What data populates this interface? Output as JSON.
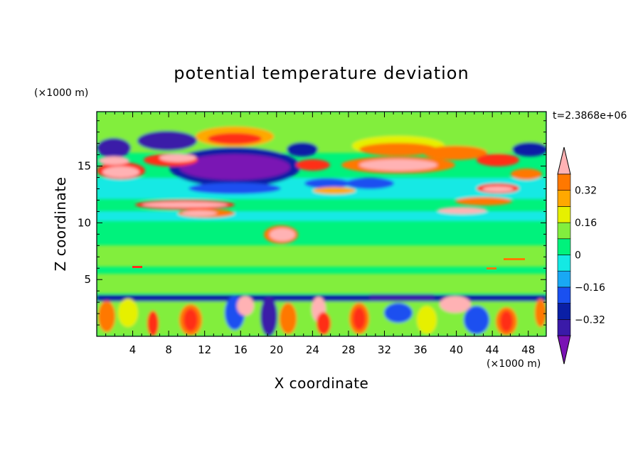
{
  "chart_data": {
    "type": "heatmap",
    "title": "potential temperature deviation",
    "xlabel": "X coordinate",
    "ylabel": "Z coordinate",
    "x_unit": "(×1000 m)",
    "y_unit": "(×1000 m)",
    "time_label": "t=2.3868e+06",
    "xlim": [
      0,
      50
    ],
    "ylim": [
      0,
      19.8
    ],
    "x_ticks": [
      4,
      8,
      12,
      16,
      20,
      24,
      28,
      32,
      36,
      40,
      44,
      48
    ],
    "x_tick_labels": [
      "4",
      "8",
      "12",
      "16",
      "20",
      "24",
      "28",
      "32",
      "36",
      "40",
      "44",
      "48"
    ],
    "y_ticks": [
      5,
      10,
      15
    ],
    "y_tick_labels": [
      "5",
      "10",
      "15"
    ],
    "colorbar": {
      "levels": [
        -0.4,
        -0.32,
        -0.24,
        -0.16,
        -0.08,
        0,
        0.08,
        0.16,
        0.24,
        0.32,
        0.4
      ],
      "colors": [
        "#7a12b4",
        "#3a1aa8",
        "#0a1fa6",
        "#1a50f0",
        "#19a8f4",
        "#14e9e4",
        "#00f27c",
        "#82ee3e",
        "#e6f000",
        "#ffa800",
        "#ff7800",
        "#ff2e18",
        "#ffb2b4"
      ],
      "labels": [
        "0.32",
        "0.16",
        "0",
        "−0.16",
        "−0.32"
      ],
      "label_values": [
        0.32,
        0.16,
        0,
        -0.16,
        -0.32
      ]
    }
  }
}
